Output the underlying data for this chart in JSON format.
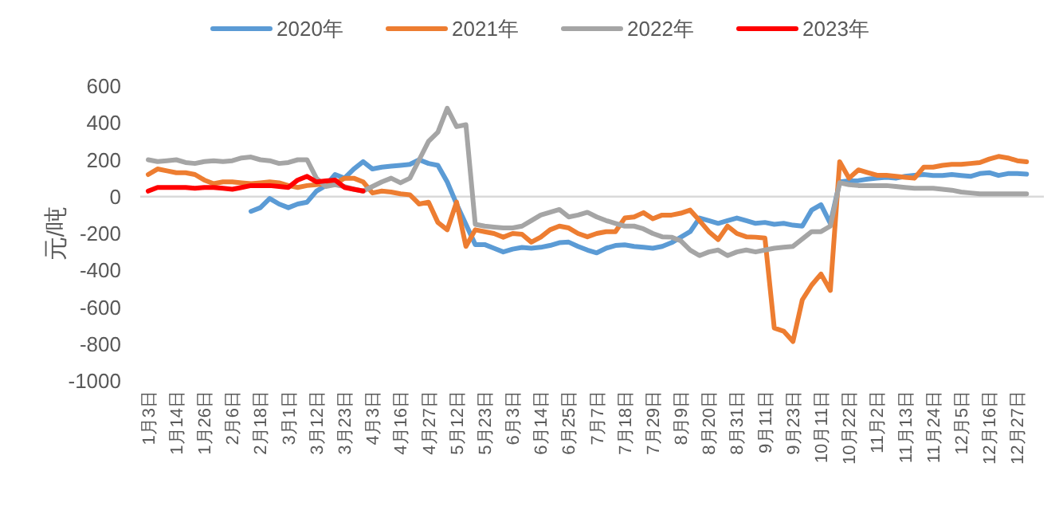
{
  "chart_data": {
    "type": "line",
    "ylabel": "元/吨",
    "legend": "top",
    "line_style": "solid",
    "categories": [
      "1月3日",
      null,
      null,
      "1月14日",
      null,
      null,
      "1月26日",
      null,
      null,
      "2月6日",
      null,
      null,
      "2月18日",
      null,
      null,
      "3月1日",
      null,
      null,
      "3月12日",
      null,
      null,
      "3月23日",
      null,
      null,
      "4月3日",
      null,
      null,
      "4月16日",
      null,
      null,
      "4月27日",
      null,
      null,
      "5月12日",
      null,
      null,
      "5月23日",
      null,
      null,
      "6月3日",
      null,
      null,
      "6月14日",
      null,
      null,
      "6月25日",
      null,
      null,
      "7月7日",
      null,
      null,
      "7月18日",
      null,
      null,
      "7月29日",
      null,
      null,
      "8月9日",
      null,
      null,
      "8月20日",
      null,
      null,
      "8月31日",
      null,
      null,
      "9月11日",
      null,
      null,
      "9月23日",
      null,
      null,
      "10月11日",
      null,
      null,
      "10月22日",
      null,
      null,
      "11月2日",
      null,
      null,
      "11月13日",
      null,
      null,
      "11月24日",
      null,
      null,
      "12月5日",
      null,
      null,
      "12月16日",
      null,
      null,
      "12月27日",
      null,
      null
    ],
    "ylim": [
      -1000,
      600
    ],
    "yticks": [
      -1000,
      -800,
      -600,
      -400,
      -200,
      0,
      200,
      400,
      600
    ],
    "series": [
      {
        "name": "2020年",
        "color": "#5b9bd5",
        "values": [
          null,
          null,
          null,
          null,
          null,
          null,
          null,
          null,
          null,
          null,
          null,
          -80,
          -60,
          -10,
          -40,
          -60,
          -40,
          -30,
          30,
          60,
          120,
          100,
          150,
          190,
          150,
          160,
          165,
          170,
          175,
          200,
          180,
          170,
          80,
          -40,
          -150,
          -260,
          -260,
          -280,
          -300,
          -285,
          -276,
          -280,
          -275,
          -265,
          -250,
          -247,
          -270,
          -290,
          -305,
          -280,
          -265,
          -262,
          -270,
          -275,
          -280,
          -270,
          -250,
          -220,
          -190,
          -116,
          -130,
          -145,
          -130,
          -116,
          -130,
          -145,
          -140,
          -150,
          -145,
          -155,
          -160,
          -73,
          -44,
          -145,
          80,
          85,
          87,
          95,
          100,
          105,
          100,
          110,
          116,
          120,
          115,
          115,
          120,
          115,
          110,
          125,
          130,
          115,
          125,
          125,
          122,
          null
        ]
      },
      {
        "name": "2021年",
        "color": "#ed7d31",
        "values": [
          120,
          150,
          140,
          130,
          130,
          120,
          90,
          70,
          80,
          80,
          75,
          70,
          75,
          80,
          75,
          60,
          50,
          60,
          65,
          70,
          70,
          100,
          100,
          80,
          20,
          30,
          25,
          15,
          10,
          -40,
          -30,
          -140,
          -180,
          -30,
          -270,
          -180,
          -190,
          -200,
          -220,
          -200,
          -204,
          -247,
          -220,
          -180,
          -160,
          -170,
          -200,
          -218,
          -200,
          -190,
          -190,
          -116,
          -110,
          -87,
          -120,
          -100,
          -100,
          -90,
          -73,
          -130,
          -190,
          -233,
          -160,
          -200,
          -218,
          -220,
          -225,
          -713,
          -730,
          -786,
          -560,
          -480,
          -420,
          -509,
          189,
          100,
          145,
          130,
          116,
          116,
          110,
          105,
          100,
          160,
          160,
          170,
          175,
          175,
          180,
          185,
          204,
          218,
          210,
          195,
          189,
          null
        ]
      },
      {
        "name": "2022年",
        "color": "#a5a5a5",
        "values": [
          200,
          190,
          195,
          200,
          185,
          180,
          190,
          195,
          190,
          195,
          210,
          215,
          200,
          195,
          180,
          185,
          200,
          200,
          100,
          55,
          65,
          55,
          40,
          30,
          55,
          80,
          100,
          75,
          100,
          200,
          300,
          350,
          480,
          380,
          390,
          -150,
          -160,
          -165,
          -170,
          -170,
          -160,
          -130,
          -100,
          -85,
          -70,
          -110,
          -100,
          -85,
          -110,
          -130,
          -145,
          -160,
          -160,
          -175,
          -200,
          -218,
          -220,
          -240,
          -290,
          -320,
          -300,
          -290,
          -320,
          -300,
          -290,
          -300,
          -290,
          -280,
          -275,
          -270,
          -230,
          -190,
          -190,
          -160,
          75,
          65,
          60,
          60,
          60,
          60,
          55,
          50,
          45,
          45,
          45,
          40,
          35,
          25,
          20,
          15,
          15,
          15,
          15,
          15,
          15,
          null
        ]
      },
      {
        "name": "2023年",
        "color": "#ff0000",
        "values": [
          30,
          50,
          50,
          50,
          50,
          45,
          50,
          50,
          45,
          40,
          50,
          60,
          60,
          60,
          55,
          50,
          90,
          110,
          80,
          85,
          90,
          50,
          40,
          30,
          null,
          null,
          null,
          null,
          null,
          null,
          null,
          null,
          null,
          null,
          null,
          null,
          null,
          null,
          null,
          null,
          null,
          null,
          null,
          null,
          null,
          null,
          null,
          null,
          null,
          null,
          null,
          null,
          null,
          null,
          null,
          null,
          null,
          null,
          null,
          null,
          null,
          null,
          null,
          null,
          null,
          null,
          null,
          null,
          null,
          null,
          null,
          null,
          null,
          null,
          null,
          null,
          null,
          null,
          null,
          null,
          null,
          null,
          null,
          null,
          null,
          null,
          null,
          null,
          null,
          null,
          null,
          null,
          null,
          null,
          null,
          null
        ]
      }
    ]
  }
}
